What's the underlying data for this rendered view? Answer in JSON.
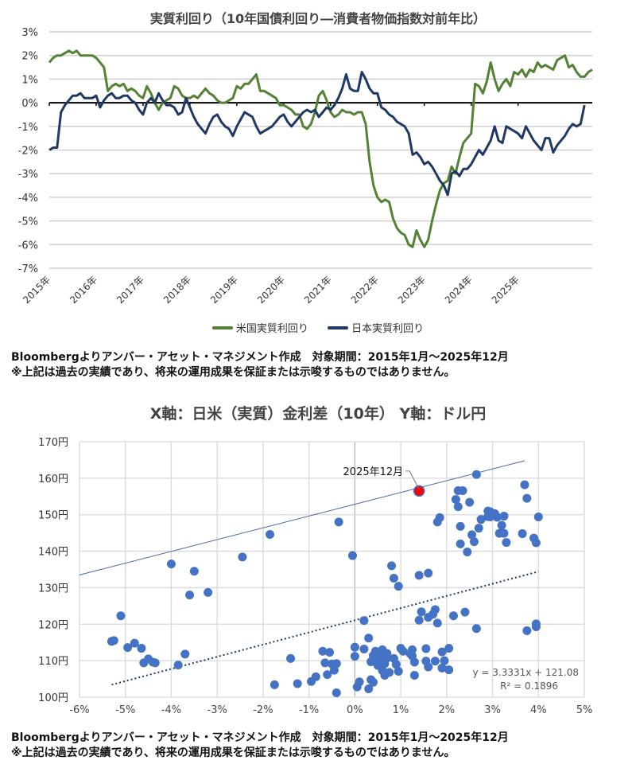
{
  "chart_data": [
    {
      "type": "line",
      "title": "実質利回り（10年国債利回り―消費者物価指数対前年比）",
      "xlabel": "",
      "ylabel": "",
      "ylim": [
        -7,
        3
      ],
      "yticks": [
        "3%",
        "2%",
        "1%",
        "0%",
        "-1%",
        "-2%",
        "-3%",
        "-4%",
        "-5%",
        "-6%",
        "-7%"
      ],
      "ytick_values": [
        3,
        2,
        1,
        0,
        -1,
        -2,
        -3,
        -4,
        -5,
        -6,
        -7
      ],
      "xticks": [
        "2015年",
        "2016年",
        "2017年",
        "2018年",
        "2019年",
        "2020年",
        "2021年",
        "2022年",
        "2023年",
        "2024年",
        "2025年"
      ],
      "x_range": [
        "2015-01",
        "2025-12"
      ],
      "grid": true,
      "legend_position": "bottom",
      "series": [
        {
          "name": "米国実質利回り",
          "color": "#548235",
          "values": [
            1.7,
            1.9,
            2.0,
            2.0,
            2.1,
            2.2,
            2.1,
            2.2,
            2.0,
            2.0,
            2.0,
            2.0,
            1.9,
            1.7,
            1.5,
            0.5,
            0.7,
            0.8,
            0.7,
            0.8,
            0.5,
            0.6,
            0.5,
            0.3,
            0.2,
            0.7,
            0.4,
            0.0,
            -0.3,
            0.0,
            0.1,
            0.2,
            0.7,
            0.6,
            0.3,
            0.2,
            0.2,
            0.3,
            0.2,
            0.4,
            0.6,
            0.4,
            0.3,
            0.1,
            0.0,
            0.0,
            0.1,
            0.2,
            0.7,
            0.6,
            0.8,
            0.8,
            1.0,
            1.2,
            0.5,
            0.5,
            0.4,
            0.3,
            0.2,
            -0.1,
            -0.1,
            -0.2,
            -0.3,
            -0.5,
            -0.5,
            -1.0,
            -1.1,
            -0.9,
            -0.4,
            0.3,
            0.5,
            0.1,
            -0.4,
            -0.6,
            -0.5,
            -0.3,
            -0.4,
            -0.4,
            -0.5,
            -0.4,
            -0.4,
            -0.9,
            -2.5,
            -3.5,
            -4.0,
            -4.2,
            -4.1,
            -4.2,
            -4.9,
            -5.3,
            -5.5,
            -5.6,
            -6.0,
            -6.1,
            -5.4,
            -5.8,
            -6.1,
            -5.8,
            -5.0,
            -4.3,
            -3.7,
            -3.4,
            -3.3,
            -2.7,
            -3.0,
            -2.3,
            -1.7,
            -1.5,
            -1.3,
            0.8,
            0.7,
            0.4,
            0.9,
            1.7,
            1.0,
            0.5,
            0.8,
            1.0,
            0.7,
            1.3,
            1.2,
            1.4,
            1.1,
            1.4,
            1.3,
            1.7,
            1.5,
            1.6,
            1.5,
            1.4,
            1.8,
            1.9,
            2.0,
            1.5,
            1.6,
            1.3,
            1.1,
            1.1,
            1.3,
            1.4
          ],
          "note": "Approximate monthly values read from chart"
        },
        {
          "name": "日本実質利回り",
          "color": "#203864",
          "values": [
            -2.0,
            -1.9,
            -1.9,
            -0.4,
            -0.1,
            0.1,
            0.3,
            0.3,
            0.4,
            0.2,
            0.2,
            0.2,
            0.3,
            -0.2,
            0.1,
            0.3,
            0.4,
            0.2,
            0.2,
            0.3,
            0.3,
            0.1,
            0.0,
            -0.3,
            -0.5,
            0.0,
            0.2,
            0.0,
            0.4,
            0.1,
            -0.1,
            -0.1,
            -0.2,
            -0.5,
            -0.4,
            0.2,
            -0.2,
            -0.6,
            -0.9,
            -1.1,
            -1.3,
            -0.9,
            -0.6,
            -0.5,
            -0.8,
            -1.0,
            -1.1,
            -1.4,
            -1.0,
            -0.7,
            -0.4,
            -0.5,
            -0.6,
            -1.0,
            -1.3,
            -1.2,
            -1.1,
            -1.0,
            -0.8,
            -0.6,
            -0.5,
            -0.8,
            -1.0,
            -0.8,
            -0.6,
            -0.4,
            -0.3,
            -0.4,
            -0.3,
            -0.6,
            -0.4,
            -0.2,
            -0.3,
            -0.1,
            0.2,
            0.6,
            1.2,
            0.6,
            0.5,
            0.5,
            1.3,
            1.0,
            0.6,
            0.4,
            0.4,
            -0.2,
            -0.3,
            -0.5,
            -0.6,
            -0.8,
            -0.9,
            -1.0,
            -1.3,
            -2.2,
            -2.1,
            -2.3,
            -2.6,
            -2.5,
            -2.7,
            -3.0,
            -3.3,
            -3.5,
            -3.9,
            -3.0,
            -2.9,
            -3.1,
            -2.8,
            -2.8,
            -2.6,
            -2.3,
            -2.0,
            -2.2,
            -1.9,
            -1.6,
            -1.0,
            -1.6,
            -1.7,
            -1.0,
            -1.1,
            -1.2,
            -1.3,
            -1.5,
            -1.0,
            -1.3,
            -1.6,
            -1.8,
            -2.0,
            -1.5,
            -1.5,
            -2.1,
            -1.8,
            -1.6,
            -1.4,
            -1.1,
            -0.9,
            -1.0,
            -0.9,
            -0.1
          ],
          "note": "Approximate monthly values read from chart"
        }
      ]
    },
    {
      "type": "scatter",
      "title": "X軸：日米（実質）金利差（10年） Y軸：ドル円",
      "xlabel": "",
      "ylabel": "",
      "xlim": [
        -6,
        5
      ],
      "ylim": [
        100,
        170
      ],
      "xticks": [
        "-6%",
        "-5%",
        "-4%",
        "-3%",
        "-2%",
        "-1%",
        "0%",
        "1%",
        "2%",
        "3%",
        "4%",
        "5%"
      ],
      "xtick_values": [
        -6,
        -5,
        -4,
        -3,
        -2,
        -1,
        0,
        1,
        2,
        3,
        4,
        5
      ],
      "yticks": [
        "170円",
        "160円",
        "150円",
        "140円",
        "130円",
        "120円",
        "110円",
        "100円"
      ],
      "ytick_values": [
        170,
        160,
        150,
        140,
        130,
        120,
        110,
        100
      ],
      "grid": true,
      "point_color": "#4472C4",
      "highlight_color": "#FF0000",
      "highlight": {
        "label": "2025年12月",
        "x": 1.4,
        "y": 156.5
      },
      "trendline": {
        "equation": "y = 3.3331x + 121.08",
        "r2": "R² = 0.1896",
        "slope": 3.3331,
        "intercept": 121.08,
        "x_range": [
          -5.3,
          4.0
        ],
        "style": "dotted",
        "color": "#203864"
      },
      "upper_band": {
        "x_range": [
          -6,
          3.7
        ],
        "y_range": [
          133.5,
          164.8
        ],
        "color": "#4a67a8"
      },
      "points": [
        [
          -5.3,
          115.3
        ],
        [
          -5.25,
          115.5
        ],
        [
          -5.1,
          122.3
        ],
        [
          -4.95,
          113.6
        ],
        [
          -4.8,
          114.8
        ],
        [
          -4.65,
          113.4
        ],
        [
          -4.6,
          109.4
        ],
        [
          -4.5,
          110.5
        ],
        [
          -4.4,
          109.6
        ],
        [
          -4.35,
          109.4
        ],
        [
          -4.0,
          136.5
        ],
        [
          -3.85,
          108.8
        ],
        [
          -3.7,
          111.8
        ],
        [
          -3.6,
          128.0
        ],
        [
          -3.5,
          134.5
        ],
        [
          -3.2,
          128.7
        ],
        [
          -2.45,
          138.4
        ],
        [
          -1.85,
          144.6
        ],
        [
          -1.75,
          103.4
        ],
        [
          -1.4,
          110.6
        ],
        [
          -1.25,
          103.7
        ],
        [
          -0.95,
          104.3
        ],
        [
          -0.85,
          105.6
        ],
        [
          -0.7,
          112.6
        ],
        [
          -0.65,
          109.4
        ],
        [
          -0.6,
          106.2
        ],
        [
          -0.55,
          112.3
        ],
        [
          -0.5,
          109.1
        ],
        [
          -0.45,
          107.4
        ],
        [
          -0.4,
          109.2
        ],
        [
          -0.4,
          101.2
        ],
        [
          -0.35,
          148.0
        ],
        [
          -0.05,
          138.8
        ],
        [
          0.0,
          113.7
        ],
        [
          0.0,
          111.2
        ],
        [
          0.05,
          102.8
        ],
        [
          0.1,
          104.2
        ],
        [
          0.2,
          121.0
        ],
        [
          0.2,
          113.2
        ],
        [
          0.3,
          116.2
        ],
        [
          0.3,
          102.3
        ],
        [
          0.35,
          109.7
        ],
        [
          0.35,
          104.8
        ],
        [
          0.4,
          104.1
        ],
        [
          0.4,
          111.4
        ],
        [
          0.45,
          112.6
        ],
        [
          0.5,
          108.7
        ],
        [
          0.5,
          110.3
        ],
        [
          0.55,
          111.0
        ],
        [
          0.6,
          113.0
        ],
        [
          0.6,
          107.3
        ],
        [
          0.65,
          109.2
        ],
        [
          0.65,
          106.0
        ],
        [
          0.7,
          112.0
        ],
        [
          0.7,
          110.7
        ],
        [
          0.75,
          106.8
        ],
        [
          0.8,
          136.0
        ],
        [
          0.85,
          132.6
        ],
        [
          0.85,
          110.6
        ],
        [
          0.9,
          109.0
        ],
        [
          0.95,
          107.1
        ],
        [
          0.95,
          130.4
        ],
        [
          1.0,
          113.4
        ],
        [
          1.05,
          112.6
        ],
        [
          1.2,
          112.0
        ],
        [
          1.25,
          111.3
        ],
        [
          1.25,
          113.0
        ],
        [
          1.3,
          109.6
        ],
        [
          1.3,
          106.0
        ],
        [
          1.4,
          133.4
        ],
        [
          1.4,
          121.1
        ],
        [
          1.45,
          123.4
        ],
        [
          1.55,
          113.3
        ],
        [
          1.55,
          109.9
        ],
        [
          1.6,
          134.0
        ],
        [
          1.6,
          121.9
        ],
        [
          1.6,
          108.3
        ],
        [
          1.7,
          122.7
        ],
        [
          1.75,
          124.0
        ],
        [
          1.8,
          120.3
        ],
        [
          1.75,
          109.9
        ],
        [
          1.8,
          148.0
        ],
        [
          1.85,
          149.2
        ],
        [
          1.9,
          108.0
        ],
        [
          1.9,
          112.4
        ],
        [
          1.95,
          110.0
        ],
        [
          2.05,
          113.4
        ],
        [
          2.05,
          107.5
        ],
        [
          2.15,
          122.3
        ],
        [
          2.2,
          154.2
        ],
        [
          2.25,
          156.6
        ],
        [
          2.25,
          152.2
        ],
        [
          2.3,
          146.8
        ],
        [
          2.3,
          142.0
        ],
        [
          2.35,
          156.6
        ],
        [
          2.4,
          123.3
        ],
        [
          2.45,
          139.8
        ],
        [
          2.5,
          153.4
        ],
        [
          2.55,
          144.5
        ],
        [
          2.6,
          142.6
        ],
        [
          2.65,
          161.0
        ],
        [
          2.7,
          146.3
        ],
        [
          2.75,
          148.7
        ],
        [
          2.65,
          118.8
        ],
        [
          2.9,
          151.0
        ],
        [
          2.9,
          149.5
        ],
        [
          2.95,
          150.8
        ],
        [
          2.95,
          149.4
        ],
        [
          3.0,
          150.3
        ],
        [
          3.05,
          150.3
        ],
        [
          3.1,
          149.3
        ],
        [
          3.15,
          144.9
        ],
        [
          3.2,
          147.1
        ],
        [
          3.25,
          149.6
        ],
        [
          3.25,
          144.9
        ],
        [
          3.3,
          142.4
        ],
        [
          3.65,
          144.8
        ],
        [
          3.7,
          158.2
        ],
        [
          3.75,
          154.5
        ],
        [
          3.75,
          118.2
        ],
        [
          3.9,
          143.6
        ],
        [
          3.95,
          142.3
        ],
        [
          4.0,
          149.4
        ],
        [
          3.95,
          120.1
        ],
        [
          3.95,
          119.3
        ]
      ]
    }
  ],
  "footnotes": {
    "source": "Bloombergよりアンバー・アセット・マネジメント作成　対象期間：2015年1月～2025年12月",
    "disclaimer": "※上記は過去の実績であり、将来の運用成果を保証または示唆するものではありません。"
  }
}
